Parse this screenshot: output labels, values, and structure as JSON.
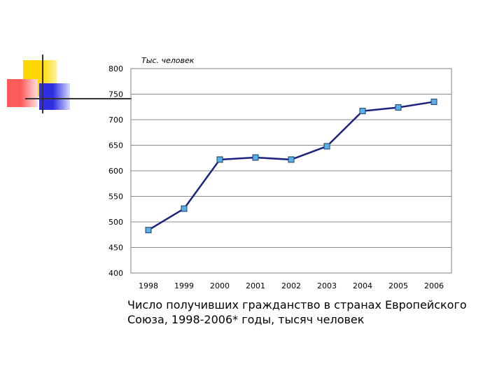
{
  "chart_data": {
    "type": "line",
    "title": "",
    "ylabel": "Тыс. человек",
    "xlabel": "",
    "x": [
      "1998",
      "1999",
      "2000",
      "2001",
      "2002",
      "2003",
      "2004",
      "2005",
      "2006"
    ],
    "series": [
      {
        "values": [
          484,
          526,
          622,
          626,
          622,
          648,
          717,
          724,
          735
        ]
      }
    ],
    "ylim": [
      400,
      800
    ],
    "yticks": [
      400,
      450,
      500,
      550,
      600,
      650,
      700,
      750,
      800
    ],
    "grid": true,
    "legend": "none",
    "line_color": "#1a237e",
    "marker_color": "#5aaee8"
  },
  "caption": {
    "line1": "Число получивших гражданство в странах Европейского",
    "line2": "Союза, 1998-2006* годы, тысяч человек"
  },
  "colors": {
    "deco_yellow": "#ffd700",
    "deco_red": "#ff6b6b",
    "deco_blue": "#3a3ae8",
    "deco_line": "#333333"
  }
}
